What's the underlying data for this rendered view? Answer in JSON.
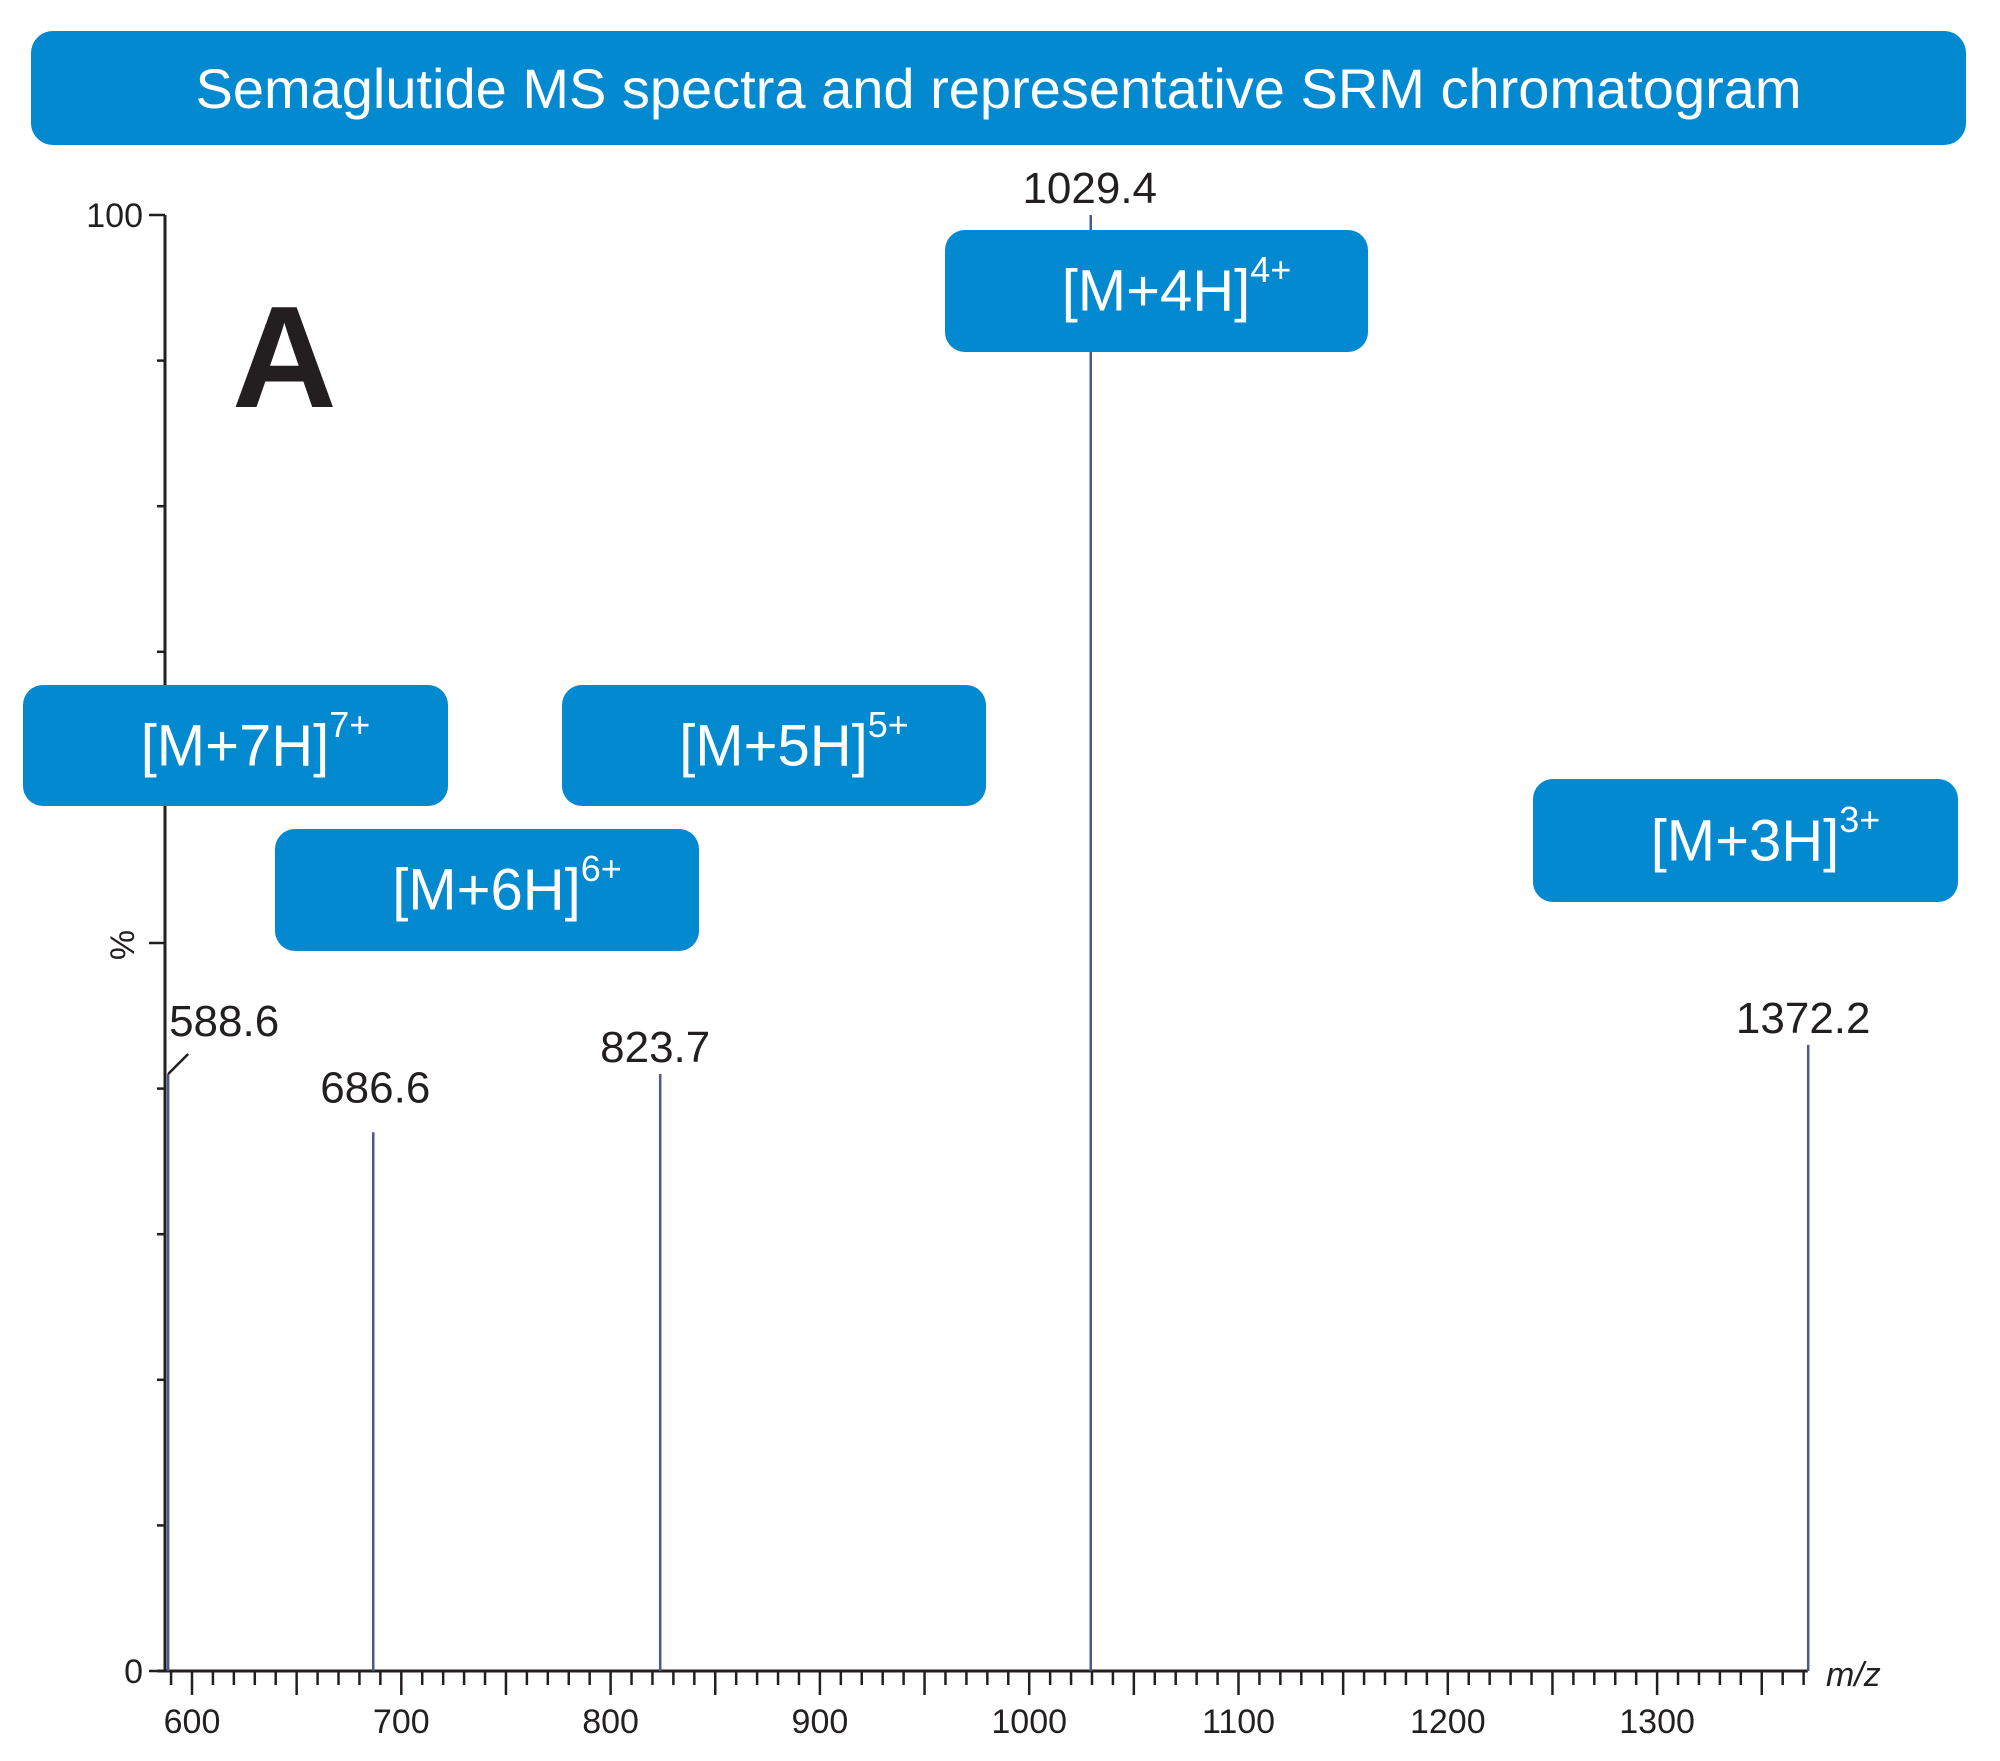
{
  "title": "Semaglutide MS spectra and representative SRM chromatogram",
  "panel_label": "A",
  "colors": {
    "accent": "#0389d0",
    "peak": "#4a5a8c",
    "axis": "#231f20"
  },
  "chart_data": {
    "type": "bar",
    "title": "Semaglutide MS spectra and representative SRM chromatogram",
    "xlabel": "m/z",
    "ylabel": "%",
    "xlim": [
      583,
      1372
    ],
    "ylim": [
      0,
      100
    ],
    "x_ticks": [
      "600",
      "700",
      "800",
      "900",
      "1000",
      "1100",
      "1200",
      "1300"
    ],
    "y_ticks": [
      "0",
      "100"
    ],
    "grid": false,
    "peaks": [
      {
        "mz": 588.6,
        "label": "588.6",
        "intensity": 41
      },
      {
        "mz": 686.6,
        "label": "686.6",
        "intensity": 37
      },
      {
        "mz": 823.7,
        "label": "823.7",
        "intensity": 41
      },
      {
        "mz": 1029.4,
        "label": "1029.4",
        "intensity": 100
      },
      {
        "mz": 1372.2,
        "label": "1372.2",
        "intensity": 43
      }
    ],
    "annotations": [
      {
        "base": "[M+7H]",
        "charge": "7+"
      },
      {
        "base": "[M+6H]",
        "charge": "6+"
      },
      {
        "base": "[M+5H]",
        "charge": "5+"
      },
      {
        "base": "[M+4H]",
        "charge": "4+"
      },
      {
        "base": "[M+3H]",
        "charge": "3+"
      }
    ]
  }
}
